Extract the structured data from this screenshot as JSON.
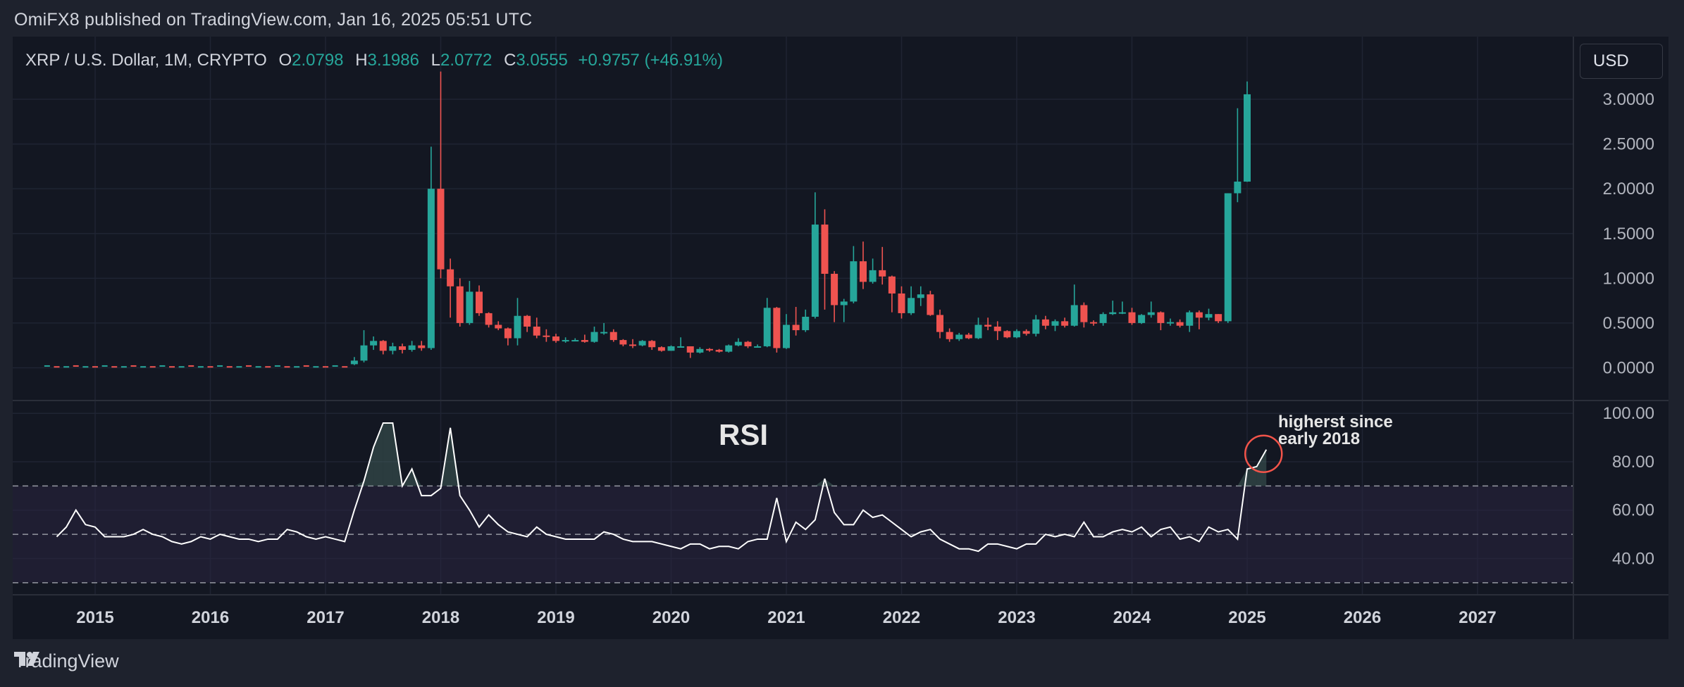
{
  "header": {
    "publisher_line": "OmiFX8 published on TradingView.com, Jan 16, 2025 05:51 UTC"
  },
  "legend": {
    "symbol": "XRP / U.S. Dollar, 1M, CRYPTO",
    "o_label": "O",
    "o_value": "2.0798",
    "h_label": "H",
    "h_value": "3.1986",
    "l_label": "L",
    "l_value": "2.0772",
    "c_label": "C",
    "c_value": "3.0555",
    "change": "+0.9757 (+46.91%)"
  },
  "currency_button": "USD",
  "rsi_title": "RSI",
  "annotation": {
    "line1": "higherst since",
    "line2": "early 2018"
  },
  "footer": {
    "brand": "TradingView"
  },
  "colors": {
    "up": "#26a69a",
    "down": "#ef5350",
    "background": "#131722",
    "rsi_line": "#ffffff",
    "annotation_circle": "#f2544a",
    "rsi_band": "#2a2440"
  },
  "chart_data": [
    {
      "type": "candlestick",
      "title": "XRP / U.S. Dollar, 1M, CRYPTO",
      "ylim": [
        -0.35,
        3.7
      ],
      "y_ticks": [
        "3.0000",
        "2.5000",
        "2.0000",
        "1.5000",
        "1.0000",
        "0.5000",
        "0.0000"
      ],
      "x_ticks": [
        "2015",
        "2016",
        "2017",
        "2018",
        "2019",
        "2020",
        "2021",
        "2022",
        "2023",
        "2024",
        "2025",
        "2026",
        "2027"
      ],
      "candles": [
        {
          "date": "2017-04",
          "o": 0.04,
          "h": 0.12,
          "l": 0.03,
          "c": 0.08
        },
        {
          "date": "2017-05",
          "o": 0.08,
          "h": 0.42,
          "l": 0.06,
          "c": 0.25
        },
        {
          "date": "2017-06",
          "o": 0.25,
          "h": 0.35,
          "l": 0.2,
          "c": 0.3
        },
        {
          "date": "2017-07",
          "o": 0.3,
          "h": 0.31,
          "l": 0.15,
          "c": 0.19
        },
        {
          "date": "2017-08",
          "o": 0.19,
          "h": 0.28,
          "l": 0.15,
          "c": 0.24
        },
        {
          "date": "2017-09",
          "o": 0.24,
          "h": 0.27,
          "l": 0.16,
          "c": 0.2
        },
        {
          "date": "2017-10",
          "o": 0.2,
          "h": 0.3,
          "l": 0.18,
          "c": 0.25
        },
        {
          "date": "2017-11",
          "o": 0.25,
          "h": 0.3,
          "l": 0.19,
          "c": 0.22
        },
        {
          "date": "2017-12",
          "o": 0.22,
          "h": 2.47,
          "l": 0.2,
          "c": 2.0
        },
        {
          "date": "2018-01",
          "o": 2.0,
          "h": 3.31,
          "l": 1.0,
          "c": 1.1
        },
        {
          "date": "2018-02",
          "o": 1.1,
          "h": 1.22,
          "l": 0.56,
          "c": 0.91
        },
        {
          "date": "2018-03",
          "o": 0.91,
          "h": 1.0,
          "l": 0.46,
          "c": 0.5
        },
        {
          "date": "2018-04",
          "o": 0.5,
          "h": 0.97,
          "l": 0.48,
          "c": 0.85
        },
        {
          "date": "2018-05",
          "o": 0.85,
          "h": 0.92,
          "l": 0.58,
          "c": 0.61
        },
        {
          "date": "2018-06",
          "o": 0.61,
          "h": 0.62,
          "l": 0.45,
          "c": 0.48
        },
        {
          "date": "2018-07",
          "o": 0.48,
          "h": 0.52,
          "l": 0.42,
          "c": 0.44
        },
        {
          "date": "2018-08",
          "o": 0.44,
          "h": 0.45,
          "l": 0.25,
          "c": 0.33
        },
        {
          "date": "2018-09",
          "o": 0.33,
          "h": 0.78,
          "l": 0.25,
          "c": 0.58
        },
        {
          "date": "2018-10",
          "o": 0.58,
          "h": 0.59,
          "l": 0.4,
          "c": 0.46
        },
        {
          "date": "2018-11",
          "o": 0.46,
          "h": 0.56,
          "l": 0.33,
          "c": 0.36
        },
        {
          "date": "2018-12",
          "o": 0.36,
          "h": 0.43,
          "l": 0.29,
          "c": 0.35
        },
        {
          "date": "2019-01",
          "o": 0.35,
          "h": 0.38,
          "l": 0.28,
          "c": 0.3
        },
        {
          "date": "2019-02",
          "o": 0.3,
          "h": 0.34,
          "l": 0.28,
          "c": 0.31
        },
        {
          "date": "2019-03",
          "o": 0.31,
          "h": 0.33,
          "l": 0.3,
          "c": 0.31
        },
        {
          "date": "2019-04",
          "o": 0.31,
          "h": 0.37,
          "l": 0.28,
          "c": 0.29
        },
        {
          "date": "2019-05",
          "o": 0.29,
          "h": 0.46,
          "l": 0.28,
          "c": 0.4
        },
        {
          "date": "2019-06",
          "o": 0.4,
          "h": 0.5,
          "l": 0.37,
          "c": 0.4
        },
        {
          "date": "2019-07",
          "o": 0.4,
          "h": 0.43,
          "l": 0.29,
          "c": 0.31
        },
        {
          "date": "2019-08",
          "o": 0.31,
          "h": 0.32,
          "l": 0.24,
          "c": 0.26
        },
        {
          "date": "2019-09",
          "o": 0.26,
          "h": 0.32,
          "l": 0.22,
          "c": 0.25
        },
        {
          "date": "2019-10",
          "o": 0.25,
          "h": 0.31,
          "l": 0.24,
          "c": 0.3
        },
        {
          "date": "2019-11",
          "o": 0.3,
          "h": 0.31,
          "l": 0.2,
          "c": 0.23
        },
        {
          "date": "2019-12",
          "o": 0.23,
          "h": 0.24,
          "l": 0.18,
          "c": 0.19
        },
        {
          "date": "2020-01",
          "o": 0.19,
          "h": 0.25,
          "l": 0.19,
          "c": 0.24
        },
        {
          "date": "2020-02",
          "o": 0.24,
          "h": 0.34,
          "l": 0.23,
          "c": 0.24
        },
        {
          "date": "2020-03",
          "o": 0.24,
          "h": 0.24,
          "l": 0.11,
          "c": 0.17
        },
        {
          "date": "2020-04",
          "o": 0.17,
          "h": 0.23,
          "l": 0.16,
          "c": 0.21
        },
        {
          "date": "2020-05",
          "o": 0.21,
          "h": 0.22,
          "l": 0.18,
          "c": 0.2
        },
        {
          "date": "2020-06",
          "o": 0.2,
          "h": 0.21,
          "l": 0.17,
          "c": 0.18
        },
        {
          "date": "2020-07",
          "o": 0.18,
          "h": 0.26,
          "l": 0.17,
          "c": 0.25
        },
        {
          "date": "2020-08",
          "o": 0.25,
          "h": 0.33,
          "l": 0.24,
          "c": 0.29
        },
        {
          "date": "2020-09",
          "o": 0.29,
          "h": 0.3,
          "l": 0.22,
          "c": 0.24
        },
        {
          "date": "2020-10",
          "o": 0.24,
          "h": 0.26,
          "l": 0.23,
          "c": 0.24
        },
        {
          "date": "2020-11",
          "o": 0.24,
          "h": 0.78,
          "l": 0.23,
          "c": 0.67
        },
        {
          "date": "2020-12",
          "o": 0.67,
          "h": 0.68,
          "l": 0.17,
          "c": 0.22
        },
        {
          "date": "2021-01",
          "o": 0.22,
          "h": 0.6,
          "l": 0.21,
          "c": 0.48
        },
        {
          "date": "2021-02",
          "o": 0.48,
          "h": 0.68,
          "l": 0.36,
          "c": 0.42
        },
        {
          "date": "2021-03",
          "o": 0.42,
          "h": 0.65,
          "l": 0.4,
          "c": 0.57
        },
        {
          "date": "2021-04",
          "o": 0.57,
          "h": 1.96,
          "l": 0.55,
          "c": 1.6
        },
        {
          "date": "2021-05",
          "o": 1.6,
          "h": 1.77,
          "l": 0.65,
          "c": 1.05
        },
        {
          "date": "2021-06",
          "o": 1.05,
          "h": 1.08,
          "l": 0.51,
          "c": 0.7
        },
        {
          "date": "2021-07",
          "o": 0.7,
          "h": 0.77,
          "l": 0.51,
          "c": 0.74
        },
        {
          "date": "2021-08",
          "o": 0.74,
          "h": 1.36,
          "l": 0.72,
          "c": 1.19
        },
        {
          "date": "2021-09",
          "o": 1.19,
          "h": 1.41,
          "l": 0.88,
          "c": 0.96
        },
        {
          "date": "2021-10",
          "o": 0.96,
          "h": 1.22,
          "l": 0.94,
          "c": 1.09
        },
        {
          "date": "2021-11",
          "o": 1.09,
          "h": 1.35,
          "l": 0.93,
          "c": 1.02
        },
        {
          "date": "2021-12",
          "o": 1.02,
          "h": 1.03,
          "l": 0.62,
          "c": 0.83
        },
        {
          "date": "2022-01",
          "o": 0.83,
          "h": 0.91,
          "l": 0.55,
          "c": 0.61
        },
        {
          "date": "2022-02",
          "o": 0.61,
          "h": 0.91,
          "l": 0.59,
          "c": 0.78
        },
        {
          "date": "2022-03",
          "o": 0.78,
          "h": 0.91,
          "l": 0.69,
          "c": 0.82
        },
        {
          "date": "2022-04",
          "o": 0.82,
          "h": 0.86,
          "l": 0.58,
          "c": 0.59
        },
        {
          "date": "2022-05",
          "o": 0.59,
          "h": 0.65,
          "l": 0.33,
          "c": 0.4
        },
        {
          "date": "2022-06",
          "o": 0.4,
          "h": 0.44,
          "l": 0.29,
          "c": 0.32
        },
        {
          "date": "2022-07",
          "o": 0.32,
          "h": 0.39,
          "l": 0.3,
          "c": 0.37
        },
        {
          "date": "2022-08",
          "o": 0.37,
          "h": 0.39,
          "l": 0.32,
          "c": 0.33
        },
        {
          "date": "2022-09",
          "o": 0.33,
          "h": 0.56,
          "l": 0.32,
          "c": 0.48
        },
        {
          "date": "2022-10",
          "o": 0.48,
          "h": 0.56,
          "l": 0.42,
          "c": 0.46
        },
        {
          "date": "2022-11",
          "o": 0.46,
          "h": 0.52,
          "l": 0.31,
          "c": 0.41
        },
        {
          "date": "2022-12",
          "o": 0.41,
          "h": 0.42,
          "l": 0.33,
          "c": 0.34
        },
        {
          "date": "2023-01",
          "o": 0.34,
          "h": 0.43,
          "l": 0.33,
          "c": 0.41
        },
        {
          "date": "2023-02",
          "o": 0.41,
          "h": 0.43,
          "l": 0.36,
          "c": 0.38
        },
        {
          "date": "2023-03",
          "o": 0.38,
          "h": 0.59,
          "l": 0.35,
          "c": 0.54
        },
        {
          "date": "2023-04",
          "o": 0.54,
          "h": 0.58,
          "l": 0.43,
          "c": 0.47
        },
        {
          "date": "2023-05",
          "o": 0.47,
          "h": 0.54,
          "l": 0.41,
          "c": 0.52
        },
        {
          "date": "2023-06",
          "o": 0.52,
          "h": 0.56,
          "l": 0.45,
          "c": 0.47
        },
        {
          "date": "2023-07",
          "o": 0.47,
          "h": 0.93,
          "l": 0.46,
          "c": 0.7
        },
        {
          "date": "2023-08",
          "o": 0.7,
          "h": 0.73,
          "l": 0.45,
          "c": 0.51
        },
        {
          "date": "2023-09",
          "o": 0.51,
          "h": 0.53,
          "l": 0.47,
          "c": 0.5
        },
        {
          "date": "2023-10",
          "o": 0.5,
          "h": 0.62,
          "l": 0.47,
          "c": 0.6
        },
        {
          "date": "2023-11",
          "o": 0.6,
          "h": 0.75,
          "l": 0.59,
          "c": 0.62
        },
        {
          "date": "2023-12",
          "o": 0.62,
          "h": 0.74,
          "l": 0.6,
          "c": 0.62
        },
        {
          "date": "2024-01",
          "o": 0.62,
          "h": 0.67,
          "l": 0.48,
          "c": 0.5
        },
        {
          "date": "2024-02",
          "o": 0.5,
          "h": 0.6,
          "l": 0.49,
          "c": 0.59
        },
        {
          "date": "2024-03",
          "o": 0.59,
          "h": 0.74,
          "l": 0.56,
          "c": 0.62
        },
        {
          "date": "2024-04",
          "o": 0.62,
          "h": 0.63,
          "l": 0.42,
          "c": 0.5
        },
        {
          "date": "2024-05",
          "o": 0.5,
          "h": 0.55,
          "l": 0.47,
          "c": 0.51
        },
        {
          "date": "2024-06",
          "o": 0.51,
          "h": 0.54,
          "l": 0.45,
          "c": 0.47
        },
        {
          "date": "2024-07",
          "o": 0.47,
          "h": 0.64,
          "l": 0.4,
          "c": 0.62
        },
        {
          "date": "2024-08",
          "o": 0.62,
          "h": 0.64,
          "l": 0.43,
          "c": 0.56
        },
        {
          "date": "2024-09",
          "o": 0.56,
          "h": 0.66,
          "l": 0.53,
          "c": 0.6
        },
        {
          "date": "2024-10",
          "o": 0.6,
          "h": 0.6,
          "l": 0.5,
          "c": 0.52
        },
        {
          "date": "2024-11",
          "o": 0.52,
          "h": 1.95,
          "l": 0.5,
          "c": 1.95
        },
        {
          "date": "2024-12",
          "o": 1.95,
          "h": 2.9,
          "l": 1.85,
          "c": 2.08
        },
        {
          "date": "2025-01",
          "o": 2.0798,
          "h": 3.1986,
          "l": 2.0772,
          "c": 3.0555
        }
      ],
      "early_flat": {
        "start": "2014-08",
        "end": "2017-03",
        "value": 0.01
      }
    },
    {
      "type": "line",
      "title": "RSI",
      "ylim": [
        25,
        105
      ],
      "y_ticks": [
        "100.00",
        "80.00",
        "60.00",
        "40.00"
      ],
      "bands": [
        70,
        50,
        30
      ],
      "series": [
        {
          "name": "RSI",
          "x_start": "2014-09",
          "values": [
            49,
            53,
            60,
            54,
            53,
            49,
            49,
            49,
            50,
            52,
            50,
            49,
            47,
            46,
            47,
            49,
            48,
            50,
            49,
            48,
            48,
            47,
            48,
            48,
            52,
            51,
            49,
            48,
            49,
            48,
            47,
            60,
            72,
            86,
            96,
            96,
            70,
            77,
            66,
            66,
            69,
            94,
            66,
            60,
            53,
            58,
            54,
            51,
            50,
            49,
            53,
            50,
            49,
            48,
            48,
            48,
            48,
            51,
            50,
            48,
            47,
            47,
            47,
            46,
            45,
            44,
            46,
            46,
            44,
            45,
            45,
            44,
            47,
            48,
            48,
            65,
            47,
            55,
            52,
            56,
            73,
            59,
            54,
            54,
            60,
            57,
            58,
            55,
            52,
            49,
            51,
            52,
            48,
            46,
            44,
            44,
            43,
            46,
            46,
            45,
            44,
            46,
            46,
            50,
            49,
            50,
            49,
            55,
            49,
            49,
            51,
            52,
            51,
            53,
            49,
            52,
            53,
            48,
            49,
            47,
            53,
            51,
            52,
            48,
            77,
            78,
            85
          ]
        }
      ]
    }
  ]
}
